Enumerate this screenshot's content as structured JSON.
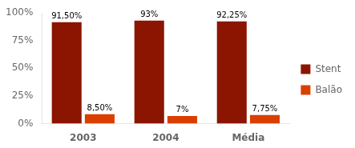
{
  "chart_data": {
    "type": "bar",
    "categories": [
      "2003",
      "2004",
      "Média"
    ],
    "series": [
      {
        "name": "Stent",
        "color": "#8B1500",
        "values": [
          91.5,
          93.0,
          92.25
        ],
        "value_labels": [
          "91,50%",
          "93%",
          "92,25%"
        ]
      },
      {
        "name": "Balão",
        "color": "#D94000",
        "values": [
          8.5,
          7.0,
          7.75
        ],
        "value_labels": [
          "8,50%",
          "7%",
          "7,75%"
        ]
      }
    ],
    "ylim": [
      0,
      100
    ],
    "yticks": [
      {
        "value": 0,
        "label": "0%"
      },
      {
        "value": 25,
        "label": "25%"
      },
      {
        "value": 50,
        "label": "50%"
      },
      {
        "value": 75,
        "label": "75%"
      },
      {
        "value": 100,
        "label": "100%"
      }
    ],
    "grid": false,
    "legend": "right",
    "data_labels": true
  }
}
